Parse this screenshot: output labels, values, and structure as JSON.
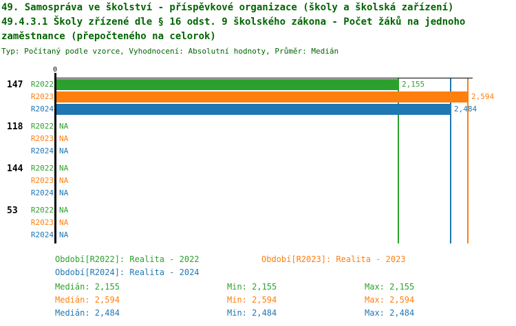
{
  "header": {
    "title_line1": "49. Samospráva ve školství - příspěvkové organizace (školy a školská zařízení)",
    "title_line2": "49.4.3.1 Školy zřízené dle § 16 odst. 9 školského zákona - Počet žáků na jednoho",
    "title_line3": "zaměstnance (přepočteného na celorok)",
    "subtitle": "Typ: Počítaný podle vzorce, Vyhodnocení: Absolutní hodnoty, Průměr: Medián"
  },
  "colors": {
    "R2022": "#2ca02c",
    "R2023": "#ff7f0e",
    "R2024": "#1f77b4",
    "title_text": "#006400",
    "axis": "#000000"
  },
  "chart_data": {
    "type": "bar",
    "orientation": "horizontal",
    "x_axis": {
      "zero_label": "0",
      "xlim": [
        0,
        2.64
      ],
      "grid": false
    },
    "na_text": "NA",
    "categories": [
      "147",
      "118",
      "144",
      "53"
    ],
    "series_labels": [
      "R2022",
      "R2023",
      "R2024"
    ],
    "groups": [
      {
        "label": "147",
        "rows": [
          {
            "series": "R2022",
            "value": 2.155,
            "display": "2,155"
          },
          {
            "series": "R2023",
            "value": 2.594,
            "display": "2,594"
          },
          {
            "series": "R2024",
            "value": 2.484,
            "display": "2,484"
          }
        ]
      },
      {
        "label": "118",
        "rows": [
          {
            "series": "R2022",
            "value": null,
            "display": "NA"
          },
          {
            "series": "R2023",
            "value": null,
            "display": "NA"
          },
          {
            "series": "R2024",
            "value": null,
            "display": "NA"
          }
        ]
      },
      {
        "label": "144",
        "rows": [
          {
            "series": "R2022",
            "value": null,
            "display": "NA"
          },
          {
            "series": "R2023",
            "value": null,
            "display": "NA"
          },
          {
            "series": "R2024",
            "value": null,
            "display": "NA"
          }
        ]
      },
      {
        "label": "53",
        "rows": [
          {
            "series": "R2022",
            "value": null,
            "display": "NA"
          },
          {
            "series": "R2023",
            "value": null,
            "display": "NA"
          },
          {
            "series": "R2024",
            "value": null,
            "display": "NA"
          }
        ]
      }
    ],
    "max_lines": [
      {
        "series": "R2022",
        "value": 2.155
      },
      {
        "series": "R2024",
        "value": 2.484
      },
      {
        "series": "R2023",
        "value": 2.594
      }
    ]
  },
  "legend": {
    "items": [
      {
        "series": "R2022",
        "label": "Období[R2022]: Realita - 2022"
      },
      {
        "series": "R2023",
        "label": "Období[R2023]: Realita - 2023"
      },
      {
        "series": "R2024",
        "label": "Období[R2024]: Realita - 2024"
      }
    ]
  },
  "stats": {
    "rows": [
      {
        "series": "R2022",
        "median": "Medián: 2,155",
        "min": "Min: 2,155",
        "max": "Max: 2,155"
      },
      {
        "series": "R2023",
        "median": "Medián: 2,594",
        "min": "Min: 2,594",
        "max": "Max: 2,594"
      },
      {
        "series": "R2024",
        "median": "Medián: 2,484",
        "min": "Min: 2,484",
        "max": "Max: 2,484"
      }
    ]
  }
}
